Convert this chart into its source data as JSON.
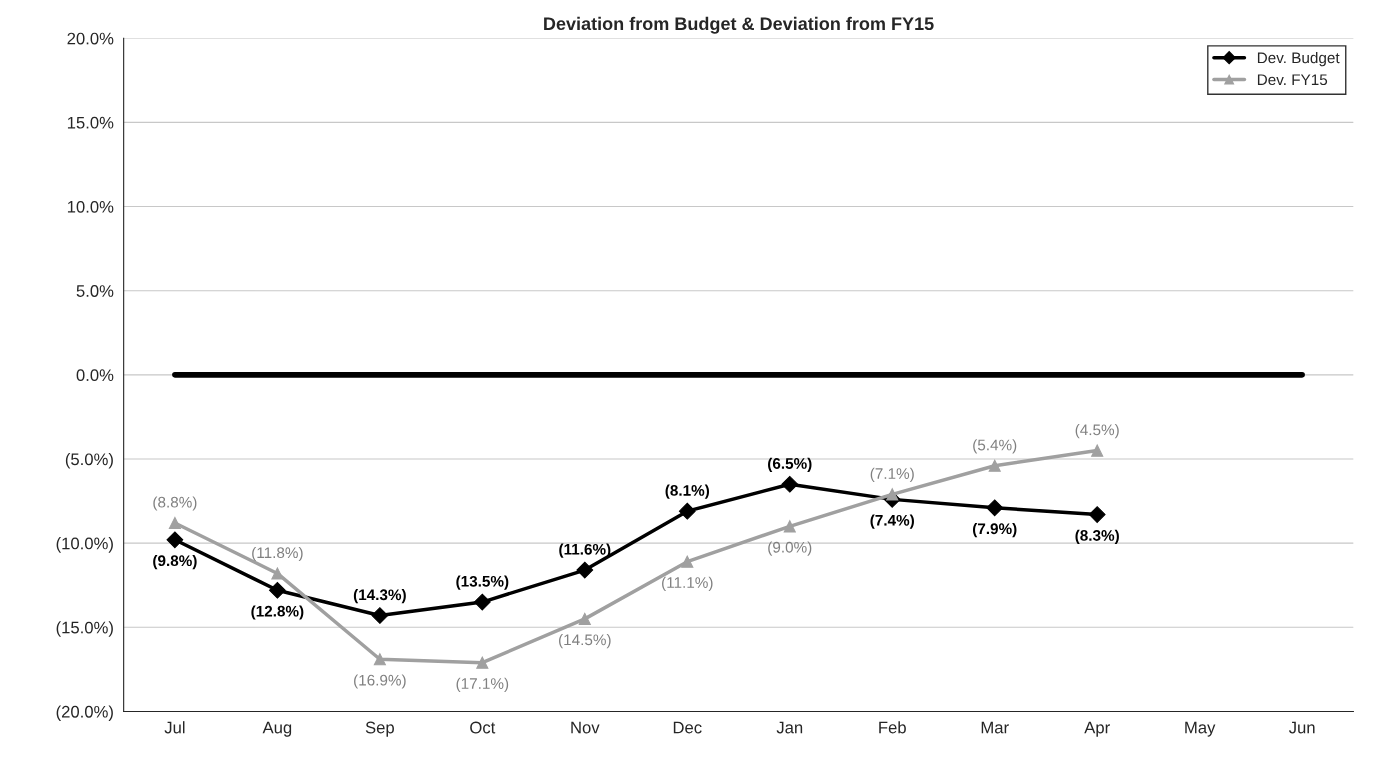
{
  "chart_data": {
    "type": "line",
    "title": "Deviation from Budget & Deviation from FY15",
    "categories": [
      "Jul",
      "Aug",
      "Sep",
      "Oct",
      "Nov",
      "Dec",
      "Jan",
      "Feb",
      "Mar",
      "Apr",
      "May",
      "Jun"
    ],
    "series": [
      {
        "color": "#000000",
        "marker": "none",
        "values": [
          0,
          0,
          0,
          0,
          0,
          0,
          0,
          0,
          0,
          0,
          0,
          0
        ]
      },
      {
        "name": "Dev. Budget",
        "color": "#000000",
        "marker": "diamond",
        "values": [
          -9.8,
          -12.8,
          -14.3,
          -13.5,
          -11.6,
          -8.1,
          -6.5,
          -7.4,
          -7.9,
          -8.3,
          null,
          null
        ],
        "value_labels": [
          "(9.8%)",
          "(12.8%)",
          "(14.3%)",
          "(13.5%)",
          "(11.6%)",
          "(8.1%)",
          "(6.5%)",
          "(7.4%)",
          "(7.9%)",
          "(8.3%)",
          null,
          null
        ]
      },
      {
        "name": "Dev. FY15",
        "color": "#a0a0a0",
        "marker": "triangle",
        "values": [
          -8.8,
          -11.8,
          -16.9,
          -17.1,
          -14.5,
          -11.1,
          -9.0,
          -7.1,
          -5.4,
          -4.5,
          null,
          null
        ],
        "value_labels": [
          "(8.8%)",
          "(11.8%)",
          "(16.9%)",
          "(17.1%)",
          "(14.5%)",
          "(11.1%)",
          "(9.0%)",
          "(7.1%)",
          "(5.4%)",
          "(4.5%)",
          null,
          null
        ]
      }
    ],
    "ylim": [
      -20,
      20
    ],
    "yticks": [
      {
        "value": -20,
        "label": "(20.0%)"
      },
      {
        "value": -15,
        "label": "(15.0%)"
      },
      {
        "value": -10,
        "label": "(10.0%)"
      },
      {
        "value": -5,
        "label": "(5.0%)"
      },
      {
        "value": 0,
        "label": "0.0%"
      },
      {
        "value": 5,
        "label": "5.0%"
      },
      {
        "value": 10,
        "label": "10.0%"
      },
      {
        "value": 15,
        "label": "15.0%"
      },
      {
        "value": 20,
        "label": "20.0%"
      }
    ],
    "grid": "y",
    "legend": "top right"
  }
}
